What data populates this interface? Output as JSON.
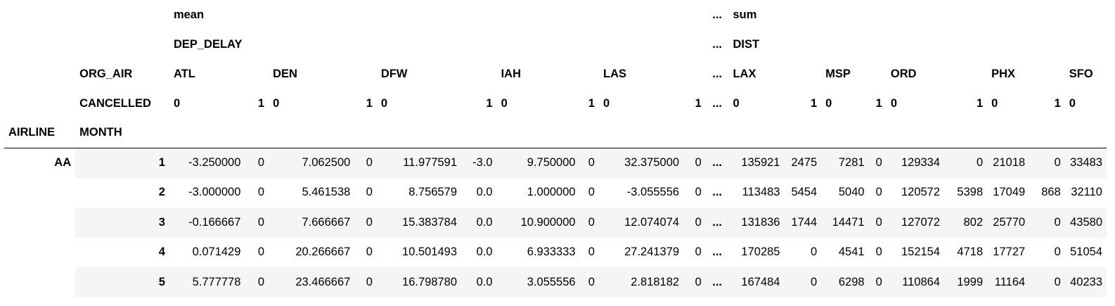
{
  "header": {
    "level0": {
      "mean": "mean",
      "ellipsis": "...",
      "sum": "sum"
    },
    "level1": {
      "left": "DEP_DELAY",
      "ellipsis": "...",
      "right": "DIST"
    },
    "org_air_label": "ORG_AIR",
    "cancelled_label": "CANCELLED",
    "airports_left": [
      "ATL",
      "DEN",
      "DFW",
      "IAH",
      "LAS"
    ],
    "airports_right": [
      "LAX",
      "MSP",
      "ORD",
      "PHX",
      "SFO"
    ],
    "cancelled_values": [
      "0",
      "1",
      "0",
      "1",
      "0",
      "1",
      "0",
      "1",
      "0",
      "1",
      "...",
      "0",
      "1",
      "0",
      "1",
      "0",
      "1",
      "0",
      "1",
      "0"
    ],
    "index_names": [
      "AIRLINE",
      "MONTH"
    ]
  },
  "rows": [
    {
      "airline": "AA",
      "month": "1",
      "cells": [
        "-3.250000",
        "0",
        "7.062500",
        "0",
        "11.977591",
        "-3.0",
        "9.750000",
        "0",
        "32.375000",
        "0",
        "...",
        "135921",
        "2475",
        "7281",
        "0",
        "129334",
        "0",
        "21018",
        "0",
        "33483"
      ]
    },
    {
      "month": "2",
      "cells": [
        "-3.000000",
        "0",
        "5.461538",
        "0",
        "8.756579",
        "0.0",
        "1.000000",
        "0",
        "-3.055556",
        "0",
        "...",
        "113483",
        "5454",
        "5040",
        "0",
        "120572",
        "5398",
        "17049",
        "868",
        "32110"
      ]
    },
    {
      "month": "3",
      "cells": [
        "-0.166667",
        "0",
        "7.666667",
        "0",
        "15.383784",
        "0.0",
        "10.900000",
        "0",
        "12.074074",
        "0",
        "...",
        "131836",
        "1744",
        "14471",
        "0",
        "127072",
        "802",
        "25770",
        "0",
        "43580"
      ]
    },
    {
      "month": "4",
      "cells": [
        "0.071429",
        "0",
        "20.266667",
        "0",
        "10.501493",
        "0.0",
        "6.933333",
        "0",
        "27.241379",
        "0",
        "...",
        "170285",
        "0",
        "4541",
        "0",
        "152154",
        "4718",
        "17727",
        "0",
        "51054"
      ]
    },
    {
      "month": "5",
      "cells": [
        "5.777778",
        "0",
        "23.466667",
        "0",
        "16.798780",
        "0.0",
        "3.055556",
        "0",
        "2.818182",
        "0",
        "...",
        "167484",
        "0",
        "6298",
        "0",
        "110864",
        "1999",
        "11164",
        "0",
        "40233"
      ]
    }
  ]
}
